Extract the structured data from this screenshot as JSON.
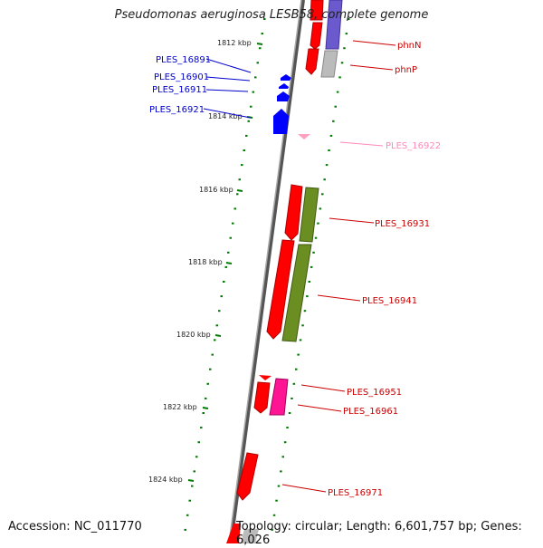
{
  "title": "Pseudomonas aeruginosa LESB58, complete genome",
  "accession": "Accession: NC_011770",
  "summary": "Topology: circular; Length: 6,601,757 bp; Genes: 6,026",
  "colors": {
    "backbone": "#808080",
    "tick": "#007a00",
    "forward_gene": "#ff0000",
    "reverse_gene": "#ff0000",
    "blue_gene": "#0000ff",
    "pink_gene": "#ff1493",
    "light_pink": "#ffa0c0",
    "olive": "#6b8e23",
    "purple": "#6a5acd",
    "gray_gene": "#b0b0b0"
  },
  "scale_labels": [
    "1812 kbp",
    "1814 kbp",
    "1816 kbp",
    "1818 kbp",
    "1820 kbp",
    "1822 kbp",
    "1824 kbp"
  ],
  "gene_labels": {
    "left": [
      {
        "text": "PLES_16891",
        "color": "#0000cc"
      },
      {
        "text": "PLES_16901",
        "color": "#0000cc"
      },
      {
        "text": "PLES_16911",
        "color": "#0000cc"
      },
      {
        "text": "PLES_16921",
        "color": "#0000cc"
      }
    ],
    "right": [
      {
        "text": "phnN",
        "color": "#cc0000"
      },
      {
        "text": "phnP",
        "color": "#cc0000"
      },
      {
        "text": "PLES_16922",
        "color": "#ff88bb"
      },
      {
        "text": "PLES_16931",
        "color": "#cc0000"
      },
      {
        "text": "PLES_16941",
        "color": "#cc0000"
      },
      {
        "text": "PLES_16951",
        "color": "#cc0000"
      },
      {
        "text": "PLES_16961",
        "color": "#cc0000"
      },
      {
        "text": "PLES_16971",
        "color": "#cc0000"
      }
    ]
  }
}
